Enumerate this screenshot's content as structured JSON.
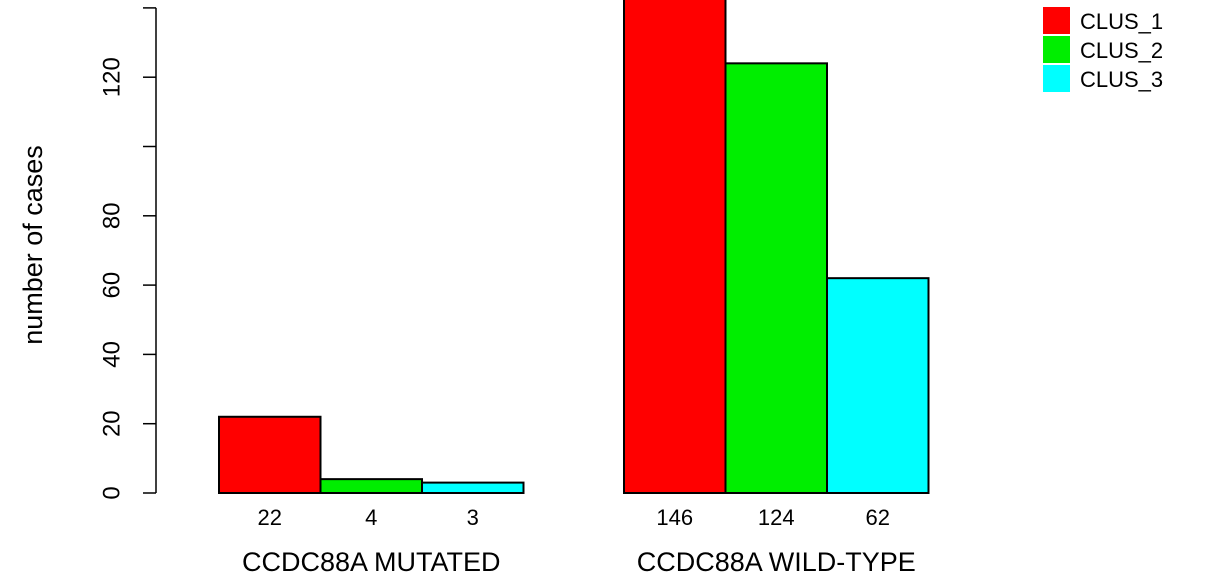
{
  "chart_data": {
    "type": "bar",
    "ylabel": "number of cases",
    "ylim": [
      0,
      146
    ],
    "yticks": [
      0,
      20,
      40,
      60,
      80,
      100,
      120,
      140
    ],
    "ytick_labels": [
      "0",
      "20",
      "40",
      "60",
      "80",
      "",
      "120",
      ""
    ],
    "groups": [
      "CCDC88A MUTATED",
      "CCDC88A WILD-TYPE"
    ],
    "series": [
      {
        "name": "CLUS_1",
        "color": "#ff0000",
        "values": [
          22,
          146
        ]
      },
      {
        "name": "CLUS_2",
        "color": "#00ee00",
        "values": [
          4,
          124
        ]
      },
      {
        "name": "CLUS_3",
        "color": "#00ffff",
        "values": [
          3,
          62
        ]
      }
    ],
    "bar_value_labels": [
      [
        "22",
        "4",
        "3"
      ],
      [
        "146",
        "124",
        "62"
      ]
    ],
    "legend": {
      "position": "top-right",
      "entries": [
        "CLUS_1",
        "CLUS_2",
        "CLUS_3"
      ]
    },
    "grid": false
  }
}
